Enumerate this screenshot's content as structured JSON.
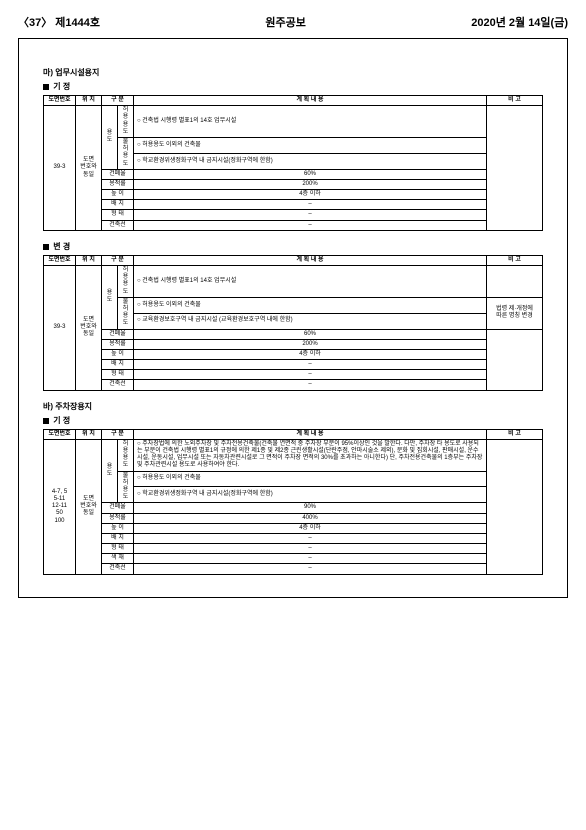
{
  "header": {
    "left": "〈37〉 제1444호",
    "center": "원주공보",
    "right": "2020년 2월 14일(금)"
  },
  "sec_ma": {
    "title": "마) 업무시설용지",
    "gijung": "기 정",
    "byungyung": "변 경",
    "cols": {
      "ref": "도면번호",
      "pos": "위 치",
      "cat": "구 분",
      "content": "계 획 내 용",
      "note": "비 고"
    },
    "t1": {
      "ref": "39-3",
      "pos": "도면\n번호와\n동일",
      "yongdo": "용 도",
      "heoyong": "허용\n용도",
      "heoyong_val": "○ 건축법 시행령 별표1의 14호 업무시설",
      "bulheo": "불허\n용도",
      "bulheo_val1": "○ 허용용도 이외의 건축물",
      "bulheo_val2": "○ 학교환경위생정화구역 내 금지시설(정화구역에 한함)",
      "gunpae": "건폐율",
      "gunpae_val": "60%",
      "yongjeok": "용적률",
      "yongjeok_val": "200%",
      "nopi": "높 이",
      "nopi_val": "4층 이하",
      "baechi": "배 치",
      "baechi_val": "–",
      "hyungtae": "형 태",
      "hyungtae_val": "–",
      "saekche": "색 채",
      "saekche_val": "–",
      "chuksun": "건축선",
      "chuksun_val": "–"
    },
    "t2": {
      "ref": "39-3",
      "pos": "도면\n번호와\n동일",
      "yongdo": "용 도",
      "heoyong": "허용\n용도",
      "heoyong_val": "○ 건축법 시행령 별표1의 14호 업무시설",
      "bulheo": "불허\n용도",
      "bulheo_val1": "○ 허용용도 이외의 건축물",
      "bulheo_val2": "○ 교육환경보호구역 내 금지시설 (교육환경보호구역 내에 한함)",
      "note2": "법령 제·개정에\n따른 명칭 변경",
      "gunpae": "건폐율",
      "gunpae_val": "60%",
      "yongjeok": "용적률",
      "yongjeok_val": "200%",
      "nopi": "높 이",
      "nopi_val": "4층 이하",
      "baechi": "배 치",
      "baechi_val": "–",
      "hyungtae": "형 태",
      "hyungtae_val": "–",
      "saekche": "색 채",
      "saekche_val": "–",
      "chuksun": "건축선",
      "chuksun_val": "–"
    }
  },
  "sec_ba": {
    "title": "바) 주차장용지",
    "gijung": "기 정",
    "cols": {
      "ref": "도면번호",
      "pos": "위 치",
      "cat": "구 분",
      "content": "계 획 내 용",
      "note": "비 고"
    },
    "t1": {
      "ref": "4-7, 5\n5-11\n12-11\n50\n100",
      "pos": "도면\n번호와\n동일",
      "yongdo": "용 도",
      "heoyong": "허용\n용도",
      "heoyong_val": "○ 주차장법에 의한 노외주차장 및 주차전용건축물(건축물 연면적 중 주차장 부분이 95%이상인 것을 말한다. 다만, 주차장 타 용도로 사용되는 부분이 건축법 시행령 별표1의 규정에 의한 제1종 및 제2종 근린생활시설(단란주점, 안마시술소 제외), 문화 및 집회시설, 판매시설, 운수시설, 운동시설, 업무시설 또는 자동차관련시설로 그 면적이 주차장 면적의 30%를 초과하는 아니한다) 단, 주차전용건축물의 1층부는 주차장 및 주차관련시설 용도로 사용하여야 한다.",
      "bulheo": "불허\n용도",
      "bulheo_val1": "○ 허용용도 이외의 건축물",
      "bulheo_val2": "○ 학교환경위생정화구역 내 금지시설(정화구역에 한함)",
      "gunpae": "건폐율",
      "gunpae_val": "90%",
      "yongjeok": "용적률",
      "yongjeok_val": "400%",
      "nopi": "높 이",
      "nopi_val": "4층 이하",
      "baechi": "배 치",
      "baechi_val": "–",
      "hyungtae": "형 태",
      "hyungtae_val": "–",
      "saekche": "색 채",
      "saekche_val": "–",
      "chuksun": "건축선",
      "chuksun_val": "–"
    }
  }
}
